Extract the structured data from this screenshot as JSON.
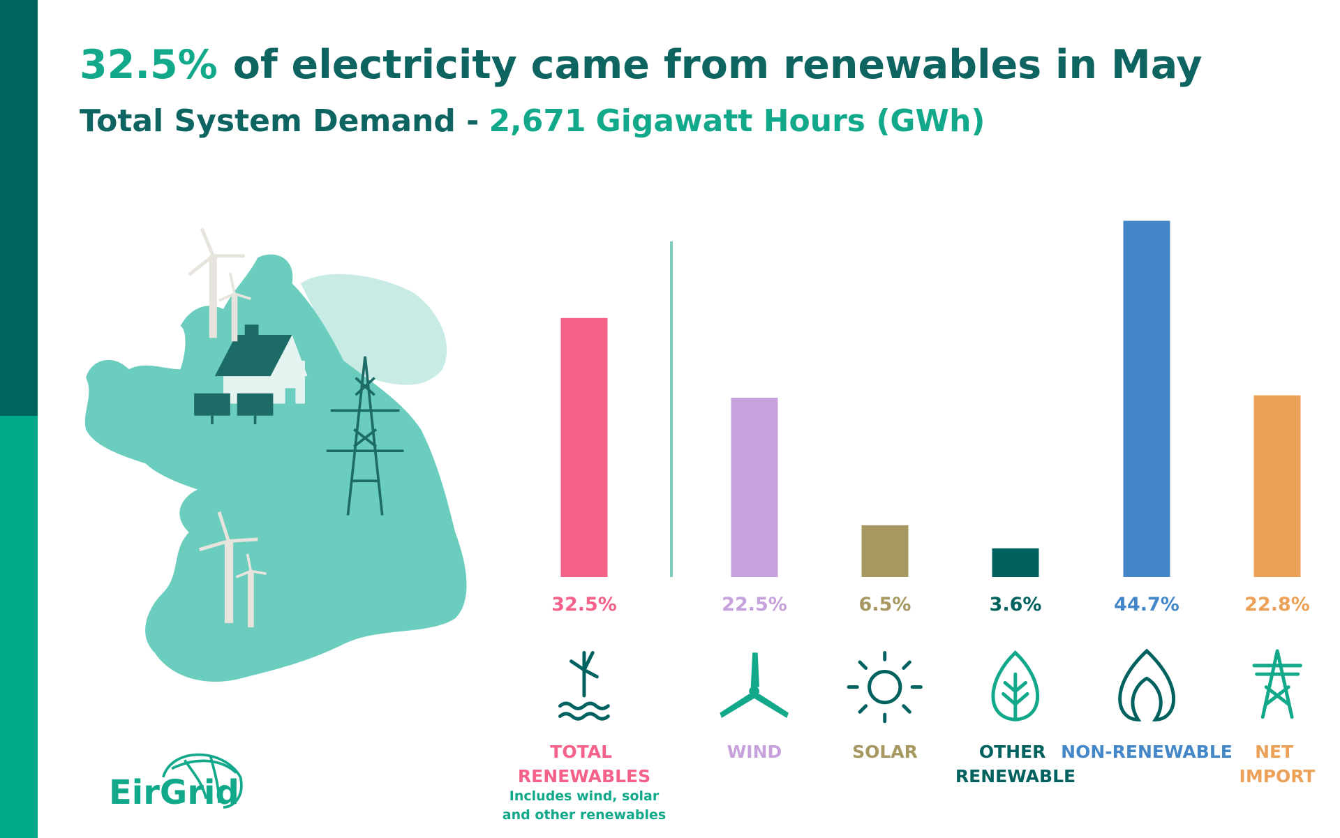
{
  "header": {
    "highlight": "32.5%",
    "title": "of electricity came from renewables in May",
    "subtitle": "Total System Demand -",
    "demand": "2,671",
    "demand_unit": "Gigawatt Hours (GWh)"
  },
  "chart_data": {
    "type": "bar",
    "categories": [
      "TOTAL RENEWABLES",
      "WIND",
      "SOLAR",
      "OTHER RENEWABLE",
      "NON-RENEWABLE",
      "NET IMPORT"
    ],
    "category_note": "Includes wind, solar and other renewables",
    "values": [
      32.5,
      22.5,
      6.5,
      3.6,
      44.7,
      22.8
    ],
    "value_labels": [
      "32.5%",
      "22.5%",
      "6.5%",
      "3.6%",
      "44.7%",
      "22.8%"
    ],
    "colors": [
      "#f4628a",
      "#c6a1db",
      "#a79862",
      "#00615f",
      "#4487c8",
      "#eba157"
    ],
    "ylim": [
      0,
      45
    ]
  },
  "logo": "EirGrid"
}
